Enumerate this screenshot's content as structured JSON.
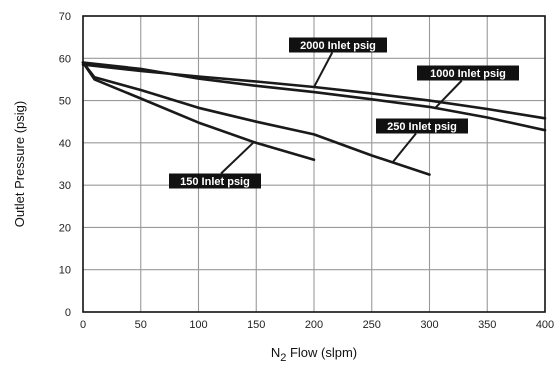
{
  "chart_data": {
    "type": "line",
    "xlabel": "N2 Flow (slpm)",
    "xlabel_main": "N",
    "xlabel_sub": "2",
    "xlabel_rest": " Flow (slpm)",
    "ylabel": "Outlet Pressure (psig)",
    "xlim": [
      0,
      400
    ],
    "ylim": [
      0,
      70
    ],
    "xticks": [
      0,
      50,
      100,
      150,
      200,
      250,
      300,
      350,
      400
    ],
    "yticks": [
      0,
      10,
      20,
      30,
      40,
      50,
      60,
      70
    ],
    "grid": true,
    "legend": "none",
    "series": [
      {
        "name": "2000 Inlet psig",
        "x": [
          0,
          50,
          100,
          150,
          200,
          250,
          300,
          350,
          400
        ],
        "y": [
          58.5,
          57,
          55.7,
          54.5,
          53.2,
          51.7,
          50,
          48,
          45.8
        ]
      },
      {
        "name": "1000 Inlet psig",
        "x": [
          0,
          50,
          100,
          150,
          200,
          250,
          300,
          350,
          400
        ],
        "y": [
          59,
          57.5,
          55.2,
          53.5,
          52,
          50.3,
          48.5,
          46,
          43
        ]
      },
      {
        "name": "250 Inlet psig",
        "x": [
          0,
          10,
          50,
          100,
          150,
          200,
          250,
          300
        ],
        "y": [
          59,
          55.5,
          52.5,
          48.3,
          45,
          42,
          37,
          32.5
        ]
      },
      {
        "name": "150 Inlet psig",
        "x": [
          0,
          10,
          50,
          100,
          150,
          200
        ],
        "y": [
          59,
          55,
          50.5,
          44.8,
          40,
          36
        ]
      }
    ],
    "annotations": [
      {
        "text": "2000 Inlet psig",
        "series": 0,
        "at_x": 200
      },
      {
        "text": "1000 Inlet psig",
        "series": 1,
        "at_x": 305
      },
      {
        "text": "250 Inlet psig",
        "series": 2,
        "at_x": 268
      },
      {
        "text": "150 Inlet psig",
        "series": 3,
        "at_x": 148
      }
    ],
    "colors": {
      "line": "#1a1a1a",
      "grid": "#9a9a9a",
      "callout_bg": "#111111",
      "callout_text": "#ffffff"
    }
  }
}
